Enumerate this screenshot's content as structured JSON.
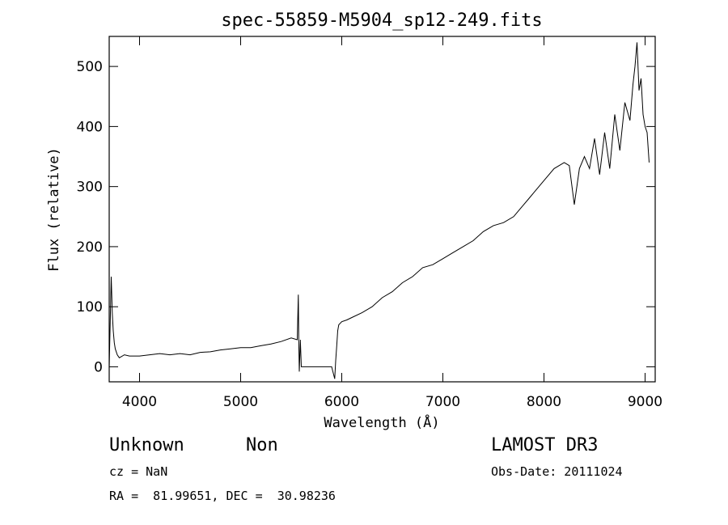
{
  "chart_data": {
    "type": "line",
    "title": "spec-55859-M5904_sp12-249.fits",
    "xlabel": "Wavelength (Å)",
    "ylabel": "Flux (relative)",
    "xlim": [
      3700,
      9100
    ],
    "ylim": [
      -25,
      550
    ],
    "xticks": [
      4000,
      5000,
      6000,
      7000,
      8000,
      9000
    ],
    "yticks": [
      0,
      100,
      200,
      300,
      400,
      500
    ],
    "xtick_labels": [
      "4000",
      "5000",
      "6000",
      "7000",
      "8000",
      "9000"
    ],
    "ytick_labels": [
      "0",
      "100",
      "200",
      "300",
      "400",
      "500"
    ],
    "series": [
      {
        "name": "flux",
        "x": [
          3700,
          3720,
          3730,
          3740,
          3750,
          3760,
          3780,
          3800,
          3850,
          3900,
          4000,
          4100,
          4200,
          4300,
          4400,
          4500,
          4600,
          4700,
          4800,
          4900,
          5000,
          5100,
          5200,
          5300,
          5400,
          5500,
          5560,
          5570,
          5575,
          5580,
          5590,
          5600,
          5700,
          5800,
          5900,
          5930,
          5940,
          5950,
          5960,
          5970,
          6000,
          6050,
          6100,
          6200,
          6300,
          6400,
          6500,
          6600,
          6700,
          6800,
          6900,
          7000,
          7100,
          7200,
          7300,
          7400,
          7500,
          7600,
          7700,
          7800,
          7850,
          7900,
          8000,
          8100,
          8200,
          8250,
          8300,
          8350,
          8400,
          8450,
          8500,
          8550,
          8600,
          8650,
          8700,
          8750,
          8800,
          8850,
          8880,
          8900,
          8920,
          8940,
          8960,
          8980,
          9000,
          9020,
          9040
        ],
        "y": [
          0,
          150,
          90,
          60,
          40,
          30,
          20,
          15,
          20,
          18,
          18,
          20,
          22,
          20,
          22,
          20,
          24,
          25,
          28,
          30,
          32,
          32,
          35,
          38,
          42,
          48,
          45,
          120,
          40,
          -8,
          45,
          0,
          0,
          0,
          0,
          -20,
          10,
          35,
          60,
          70,
          75,
          78,
          82,
          90,
          100,
          115,
          125,
          140,
          150,
          165,
          170,
          180,
          190,
          200,
          210,
          225,
          235,
          240,
          250,
          270,
          280,
          290,
          310,
          330,
          340,
          335,
          270,
          330,
          350,
          330,
          380,
          320,
          390,
          330,
          420,
          360,
          440,
          410,
          470,
          500,
          540,
          460,
          480,
          420,
          400,
          390,
          340
        ]
      }
    ]
  },
  "info": {
    "object_class": "Unknown",
    "subclass": "Non",
    "survey": "LAMOST DR3",
    "cz": "cz = NaN",
    "obs_date": "Obs-Date: 20111024",
    "coords": "RA =  81.99651, DEC =  30.98236"
  },
  "colors": {
    "line": "#000000",
    "axes": "#000000",
    "background": "#ffffff"
  }
}
